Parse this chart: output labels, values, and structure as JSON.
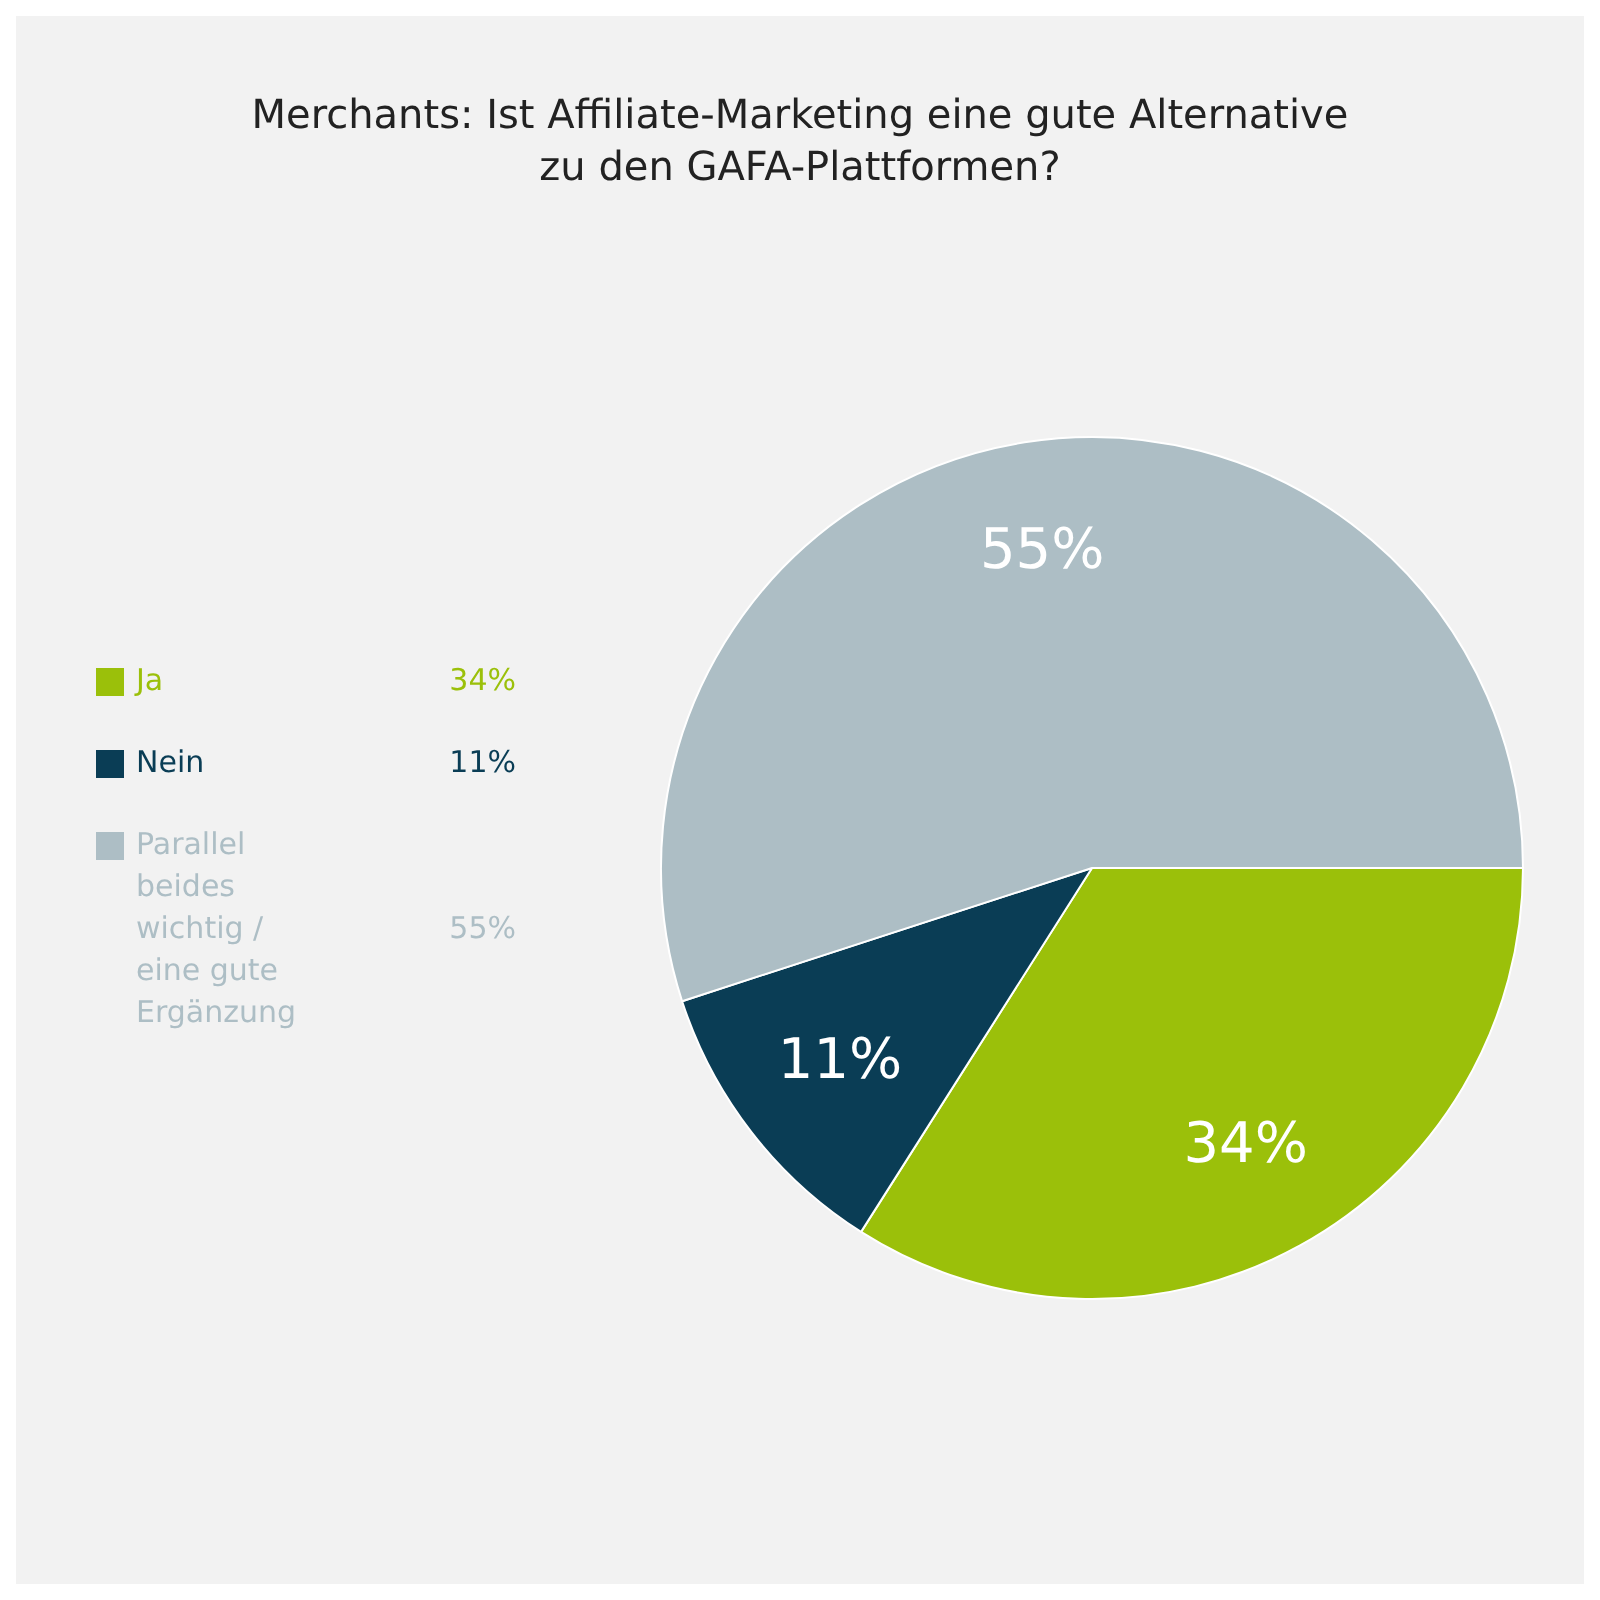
{
  "chart_data": {
    "type": "pie",
    "title": "Merchants: Ist Affiliate-Marketing eine gute Alternative\nzu den GAFA-Plattformen?",
    "categories": [
      "Ja",
      "Nein",
      "Parallel beides wichtig / eine gute Ergänzung"
    ],
    "values": [
      34,
      11,
      55
    ],
    "colors": [
      "#9bc00a",
      "#0a3d55",
      "#adbec5"
    ],
    "value_labels": [
      "34%",
      "11%",
      "55%"
    ],
    "legend": "left"
  }
}
